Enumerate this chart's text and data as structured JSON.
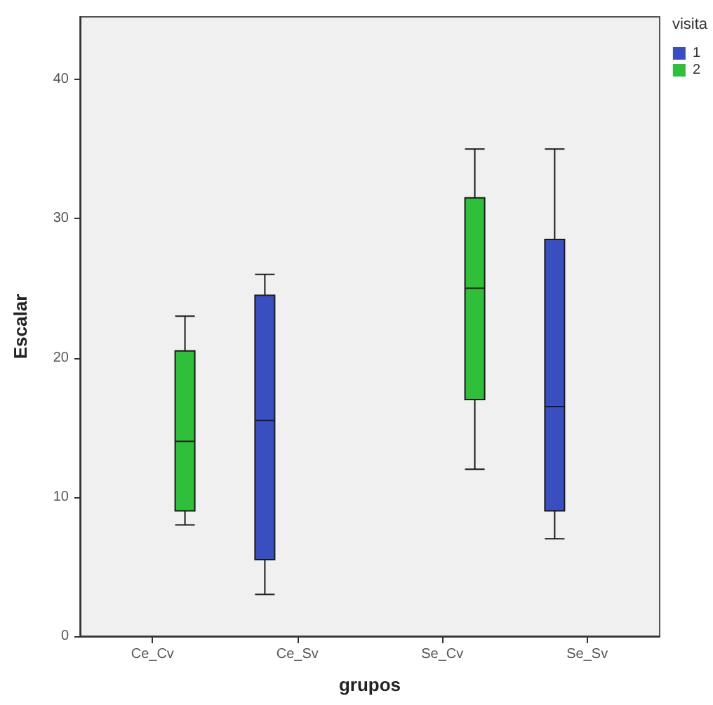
{
  "chart_data": {
    "type": "box",
    "xlabel": "grupos",
    "ylabel": "Escalar",
    "legend_title": "visita",
    "categories": [
      "Ce_Cv",
      "Ce_Sv",
      "Se_Cv",
      "Se_Sv"
    ],
    "series": [
      {
        "name": "1",
        "color": "#3a4fbf",
        "boxes": [
          null,
          {
            "low": 3,
            "q1": 5.5,
            "median": 15.5,
            "q3": 24.5,
            "high": 26
          },
          null,
          {
            "low": 7,
            "q1": 9,
            "median": 16.5,
            "q3": 28.5,
            "high": 35
          }
        ]
      },
      {
        "name": "2",
        "color": "#2fbf3a",
        "boxes": [
          {
            "low": 8,
            "q1": 9,
            "median": 14,
            "q3": 20.5,
            "high": 23
          },
          null,
          {
            "low": 12,
            "q1": 17,
            "median": 25,
            "q3": 31.5,
            "high": 35
          },
          null
        ]
      }
    ],
    "ylim": [
      0,
      44.5
    ],
    "yticks": [
      0,
      10,
      20,
      30,
      40
    ],
    "grid": false,
    "legend": "top right"
  }
}
